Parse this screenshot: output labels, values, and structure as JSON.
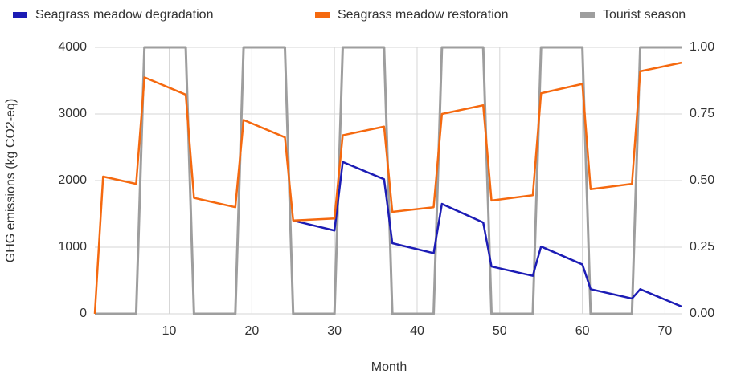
{
  "chart_data": {
    "type": "line",
    "xlabel": "Month",
    "ylabel": "GHG emissions (kg CO2-eq)",
    "xlim": [
      1,
      72
    ],
    "xticks": [
      10,
      20,
      30,
      40,
      50,
      60,
      70
    ],
    "ylim": [
      0,
      4000
    ],
    "yticks": [
      0,
      1000,
      2000,
      3000,
      4000
    ],
    "y2lim": [
      0,
      1
    ],
    "y2ticks": [
      {
        "value": 0,
        "label": "0.00"
      },
      {
        "value": 0.25,
        "label": "0.25"
      },
      {
        "value": 0.5,
        "label": "0.50"
      },
      {
        "value": 0.75,
        "label": "0.75"
      },
      {
        "value": 1,
        "label": "1.00"
      }
    ],
    "grid": true,
    "legend": "top",
    "series": [
      {
        "name": "Seagrass meadow degradation",
        "color": "#1c1cb5",
        "x": [
          25,
          30,
          31,
          36,
          37,
          42,
          43,
          48,
          49,
          54,
          55,
          60,
          61,
          66,
          67,
          72
        ],
        "values": [
          1400,
          1250,
          2280,
          2020,
          1060,
          910,
          1650,
          1370,
          710,
          570,
          1010,
          740,
          370,
          230,
          370,
          110
        ]
      },
      {
        "name": "Seagrass meadow restoration",
        "color": "#f5690f",
        "x": [
          1,
          2,
          6,
          7,
          12,
          13,
          18,
          19,
          24,
          25,
          30,
          31,
          36,
          37,
          42,
          43,
          48,
          49,
          54,
          55,
          60,
          61,
          66,
          67,
          72
        ],
        "values": [
          0,
          2060,
          1950,
          3550,
          3290,
          1740,
          1600,
          2910,
          2650,
          1400,
          1430,
          2680,
          2810,
          1530,
          1600,
          3000,
          3130,
          1700,
          1780,
          3310,
          3450,
          1870,
          1950,
          3640,
          3770
        ]
      },
      {
        "name": "Tourist season",
        "color": "#9e9e9e",
        "axis": "y2",
        "x": [
          1,
          6,
          7,
          12,
          13,
          18,
          19,
          24,
          25,
          30,
          31,
          36,
          37,
          42,
          43,
          48,
          49,
          54,
          55,
          60,
          61,
          66,
          67,
          72
        ],
        "values": [
          0,
          0,
          1,
          1,
          0,
          0,
          1,
          1,
          0,
          0,
          1,
          1,
          0,
          0,
          1,
          1,
          0,
          0,
          1,
          1,
          0,
          0,
          1,
          1
        ]
      }
    ]
  }
}
